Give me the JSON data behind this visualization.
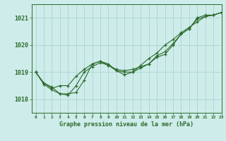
{
  "title": "Graphe pression niveau de la mer (hPa)",
  "bg_color": "#ceecea",
  "grid_color": "#afd8d5",
  "line_color": "#2d6b2d",
  "xlim": [
    -0.5,
    23
  ],
  "ylim": [
    1017.5,
    1021.5
  ],
  "yticks": [
    1018,
    1019,
    1020,
    1021
  ],
  "xtick_labels": [
    "0",
    "1",
    "2",
    "3",
    "4",
    "5",
    "6",
    "7",
    "8",
    "9",
    "10",
    "11",
    "12",
    "13",
    "14",
    "15",
    "16",
    "17",
    "18",
    "19",
    "20",
    "21",
    "22",
    "23"
  ],
  "xtick_positions": [
    0,
    1,
    2,
    3,
    4,
    5,
    6,
    7,
    8,
    9,
    10,
    11,
    12,
    13,
    14,
    15,
    16,
    17,
    18,
    19,
    20,
    21,
    22,
    23
  ],
  "series": [
    [
      1019.0,
      1018.6,
      1018.45,
      1018.2,
      1018.2,
      1018.25,
      1018.7,
      1019.3,
      1019.4,
      1019.25,
      1019.1,
      1019.05,
      1019.1,
      1019.2,
      1019.3,
      1019.6,
      1019.75,
      1020.05,
      1020.4,
      1020.6,
      1021.0,
      1021.1,
      1021.1,
      1021.2
    ],
    [
      1019.0,
      1018.6,
      1018.4,
      1018.5,
      1018.5,
      1018.85,
      1019.1,
      1019.3,
      1019.4,
      1019.3,
      1019.05,
      1018.9,
      1019.0,
      1019.25,
      1019.5,
      1019.7,
      1020.0,
      1020.2,
      1020.45,
      1020.65,
      1020.85,
      1021.05,
      1021.1,
      1021.2
    ],
    [
      1019.0,
      1018.55,
      1018.35,
      1018.2,
      1018.15,
      1018.5,
      1019.0,
      1019.2,
      1019.35,
      1019.25,
      1019.05,
      1019.0,
      1019.0,
      1019.15,
      1019.3,
      1019.55,
      1019.65,
      1020.0,
      1020.4,
      1020.6,
      1020.95,
      1021.05,
      1021.1,
      1021.2
    ]
  ],
  "ytick_fontsize": 6,
  "xtick_fontsize": 4.5,
  "xlabel_fontsize": 6
}
